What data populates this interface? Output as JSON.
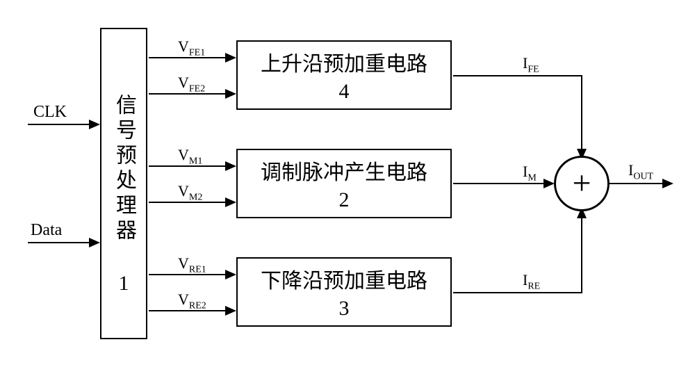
{
  "inputs": {
    "clk": "CLK",
    "data": "Data"
  },
  "preprocessor": {
    "name": "信号预处理器",
    "num": "1"
  },
  "block_rising": {
    "name": "上升沿预加重电路",
    "num": "4"
  },
  "block_modulation": {
    "name": "调制脉冲产生电路",
    "num": "2"
  },
  "block_falling": {
    "name": "下降沿预加重电路",
    "num": "3"
  },
  "signals": {
    "vfe1": "V<sub>FE1</sub>",
    "vfe2": "V<sub>FE2</sub>",
    "vm1": "V<sub>M1</sub>",
    "vm2": "V<sub>M2</sub>",
    "vre1": "V<sub>RE1</sub>",
    "vre2": "V<sub>RE2</sub>",
    "ife": "I<sub>FE</sub>",
    "im": "I<sub>M</sub>",
    "ire": "I<sub>RE</sub>",
    "iout": "I<sub>OUT</sub>"
  },
  "summing": "+",
  "style": {
    "block_fontsize": 30,
    "label_fontsize": 22,
    "colors": {
      "line": "#000000",
      "bg": "#ffffff"
    }
  }
}
